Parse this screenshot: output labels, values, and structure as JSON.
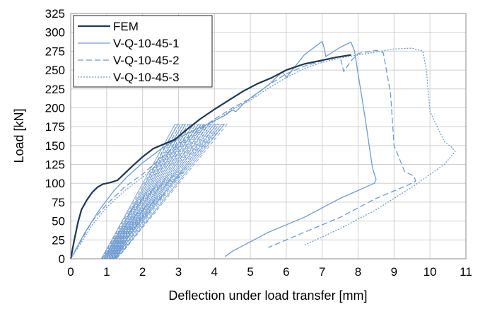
{
  "chart_data": {
    "type": "line",
    "title": "",
    "xlabel": "Deflection under load transfer [mm]",
    "ylabel": "Load [kN]",
    "xlim": [
      0,
      11
    ],
    "ylim": [
      0,
      325
    ],
    "xticks": [
      0,
      1,
      2,
      3,
      4,
      5,
      6,
      7,
      8,
      9,
      10,
      11
    ],
    "yticks": [
      0,
      25,
      50,
      75,
      100,
      125,
      150,
      175,
      200,
      225,
      250,
      275,
      300,
      325
    ],
    "grid": true,
    "legend_position": "top-left",
    "series": [
      {
        "name": "FEM",
        "color": "#1f3553",
        "style": "solid",
        "x": [
          0,
          0.1,
          0.2,
          0.3,
          0.45,
          0.6,
          0.75,
          0.9,
          1.1,
          1.3,
          1.5,
          1.7,
          2.0,
          2.3,
          2.6,
          2.9,
          3.2,
          3.6,
          4.0,
          4.4,
          4.8,
          5.2,
          5.6,
          6.0,
          6.5,
          7.0,
          7.4,
          7.8
        ],
        "y": [
          0,
          25,
          48,
          65,
          78,
          88,
          95,
          99,
          101,
          104,
          113,
          122,
          135,
          146,
          152,
          158,
          170,
          185,
          198,
          210,
          222,
          232,
          240,
          250,
          258,
          263,
          267,
          270
        ]
      },
      {
        "name": "V-Q-10-45-1",
        "color": "#6f9bd1",
        "style": "solid",
        "x": [
          0,
          0.4,
          0.8,
          1.2,
          1.6,
          2.0,
          2.5,
          3.0,
          3.5,
          3.8,
          4.0,
          4.3,
          4.5,
          4.6,
          4.8,
          5.0,
          5.5,
          5.9,
          6.0,
          6.5,
          7.0,
          7.05,
          7.1,
          7.5,
          7.8,
          7.9,
          8.0,
          8.2,
          8.4,
          8.5,
          8.45,
          7.5,
          6.5,
          5.5,
          4.5,
          4.3
        ],
        "y": [
          0,
          35,
          65,
          90,
          110,
          127,
          145,
          160,
          172,
          178,
          183,
          190,
          197,
          195,
          205,
          213,
          230,
          248,
          240,
          270,
          288,
          280,
          268,
          280,
          287,
          275,
          245,
          185,
          120,
          105,
          100,
          80,
          55,
          35,
          10,
          3
        ]
      },
      {
        "name": "V-Q-10-45-2",
        "color": "#6f9bd1",
        "style": "dashed",
        "x": [
          0,
          0.3,
          0.6,
          1.0,
          1.5,
          2.0,
          2.5,
          3.0,
          3.5,
          4.0,
          4.5,
          5.0,
          5.5,
          6.0,
          6.5,
          7.0,
          7.5,
          7.6,
          7.8,
          8.0,
          8.5,
          8.7,
          8.9,
          9.0,
          9.3,
          9.55,
          9.6,
          9.4,
          8.5,
          7.5,
          6.5,
          5.5
        ],
        "y": [
          0,
          25,
          50,
          72,
          95,
          112,
          133,
          152,
          168,
          185,
          200,
          212,
          230,
          245,
          255,
          262,
          268,
          248,
          262,
          272,
          276,
          273,
          220,
          150,
          115,
          110,
          103,
          98,
          80,
          55,
          35,
          15
        ]
      },
      {
        "name": "V-Q-10-45-3",
        "color": "#6f9bd1",
        "style": "dotted",
        "x": [
          0,
          0.3,
          0.6,
          1.0,
          1.5,
          2.0,
          2.5,
          3.0,
          3.5,
          4.0,
          4.5,
          5.0,
          5.5,
          6.0,
          6.5,
          7.0,
          7.5,
          8.0,
          8.5,
          9.0,
          9.5,
          9.8,
          9.9,
          10.0,
          10.4,
          10.6,
          10.7,
          10.4,
          9.5,
          8.5,
          7.5,
          6.5
        ],
        "y": [
          0,
          22,
          45,
          68,
          90,
          108,
          128,
          148,
          165,
          182,
          198,
          210,
          226,
          240,
          252,
          260,
          266,
          270,
          274,
          278,
          279,
          275,
          250,
          195,
          155,
          148,
          142,
          125,
          95,
          65,
          40,
          18
        ]
      }
    ]
  }
}
